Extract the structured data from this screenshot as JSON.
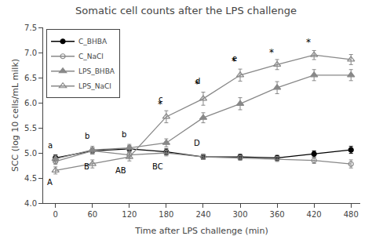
{
  "chart_data": {
    "type": "line",
    "title": "Somatic cell counts after the LPS challenge",
    "xlabel": "Time after LPS challenge (min)",
    "ylabel": "SCC (log 10 cells/mL milk)",
    "x": [
      0,
      60,
      120,
      180,
      240,
      300,
      360,
      420,
      480
    ],
    "series": [
      {
        "name": "C_BHBA",
        "color": "#000000",
        "marker": "circle",
        "values": [
          4.9,
          5.04,
          5.08,
          5.02,
          4.92,
          4.92,
          4.9,
          4.98,
          5.06
        ],
        "errors": [
          0.06,
          0.06,
          0.06,
          0.06,
          0.05,
          0.05,
          0.05,
          0.06,
          0.07
        ]
      },
      {
        "name": "C_NaCl",
        "color": "#888888",
        "marker": "circle-open",
        "values": [
          4.83,
          5.04,
          4.96,
          5.0,
          4.92,
          4.9,
          4.88,
          4.85,
          4.78
        ],
        "errors": [
          0.06,
          0.06,
          0.07,
          0.06,
          0.05,
          0.05,
          0.05,
          0.06,
          0.08
        ]
      },
      {
        "name": "LPS_BHBA",
        "color": "#888888",
        "marker": "triangle-up",
        "values": [
          4.88,
          5.06,
          5.1,
          5.2,
          5.7,
          5.98,
          6.3,
          6.55,
          6.55
        ],
        "errors": [
          0.07,
          0.07,
          0.07,
          0.08,
          0.1,
          0.12,
          0.12,
          0.11,
          0.11
        ]
      },
      {
        "name": "LPS_NaCl",
        "color": "#888888",
        "marker": "triangle-up-open",
        "values": [
          4.65,
          4.78,
          4.92,
          5.72,
          6.08,
          6.55,
          6.76,
          6.95,
          6.86
        ],
        "errors": [
          0.07,
          0.08,
          0.08,
          0.12,
          0.13,
          0.12,
          0.1,
          0.09,
          0.1
        ]
      }
    ],
    "annotations": [
      {
        "x": -2,
        "y": 5.0,
        "text": "a"
      },
      {
        "x": 58,
        "y": 5.19,
        "text": "b"
      },
      {
        "x": 118,
        "y": 5.22,
        "text": "b"
      },
      {
        "x": 178,
        "y": 5.92,
        "text": "c"
      },
      {
        "x": 238,
        "y": 6.28,
        "text": "d"
      },
      {
        "x": 298,
        "y": 6.73,
        "text": "e"
      },
      {
        "x": -2,
        "y": 4.56,
        "text": "A"
      },
      {
        "x": 58,
        "y": 4.87,
        "text": "B"
      },
      {
        "x": 118,
        "y": 4.8,
        "text": "AB"
      },
      {
        "x": 178,
        "y": 4.87,
        "text": "BC"
      },
      {
        "x": 238,
        "y": 5.34,
        "text": "D"
      },
      {
        "x": 178,
        "y": 5.82,
        "text": "*"
      },
      {
        "x": 238,
        "y": 6.22,
        "text": "*"
      },
      {
        "x": 298,
        "y": 6.67,
        "text": "*"
      },
      {
        "x": 358,
        "y": 6.84,
        "text": "*"
      },
      {
        "x": 418,
        "y": 7.04,
        "text": "*"
      }
    ],
    "xlim": [
      -20,
      495
    ],
    "ylim": [
      4.0,
      7.5
    ],
    "xticks": [
      0,
      60,
      120,
      180,
      240,
      300,
      360,
      420,
      480
    ],
    "yticks": [
      {
        "value": 4.0,
        "label": "4.0"
      },
      {
        "value": 4.5,
        "label": "4.5"
      },
      {
        "value": 5.0,
        "label": "5.0"
      },
      {
        "value": 5.5,
        "label": "5.5"
      },
      {
        "value": 6.0,
        "label": "6.0"
      },
      {
        "value": 6.5,
        "label": "6.5"
      },
      {
        "value": 7.0,
        "label": "7.0"
      },
      {
        "value": 7.5,
        "label": "7.5"
      }
    ],
    "grid": false,
    "legend": "upper left"
  }
}
